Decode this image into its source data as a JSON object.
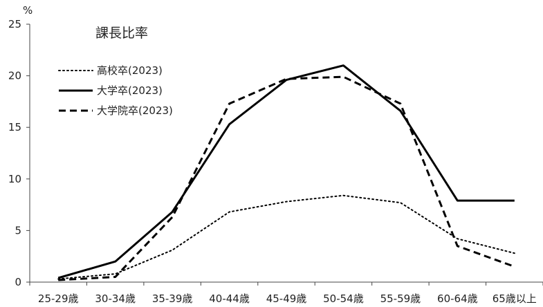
{
  "chart_data": {
    "type": "line",
    "title": "課長比率",
    "y_unit": "%",
    "xlabel": "",
    "ylabel": "",
    "ylim": [
      0,
      25
    ],
    "yticks": [
      0,
      5,
      10,
      15,
      20,
      25
    ],
    "grid": false,
    "legend_position": "top-left",
    "categories": [
      "25-29歳",
      "30-34歳",
      "35-39歳",
      "40-44歳",
      "45-49歳",
      "50-54歳",
      "55-59歳",
      "60-64歳",
      "65歳以上"
    ],
    "series": [
      {
        "name": "高校卒(2023)",
        "style": "dotted",
        "color": "#000000",
        "values": [
          0.3,
          0.8,
          3.1,
          6.8,
          7.8,
          8.4,
          7.7,
          4.2,
          2.8
        ]
      },
      {
        "name": "大学卒(2023)",
        "style": "solid",
        "color": "#000000",
        "values": [
          0.4,
          2.0,
          6.8,
          15.3,
          19.6,
          21.0,
          16.6,
          7.9,
          7.9
        ]
      },
      {
        "name": "大学院卒(2023)",
        "style": "dashed",
        "color": "#000000",
        "values": [
          0.2,
          0.5,
          6.3,
          17.3,
          19.7,
          19.9,
          17.3,
          3.5,
          1.5
        ]
      }
    ]
  }
}
